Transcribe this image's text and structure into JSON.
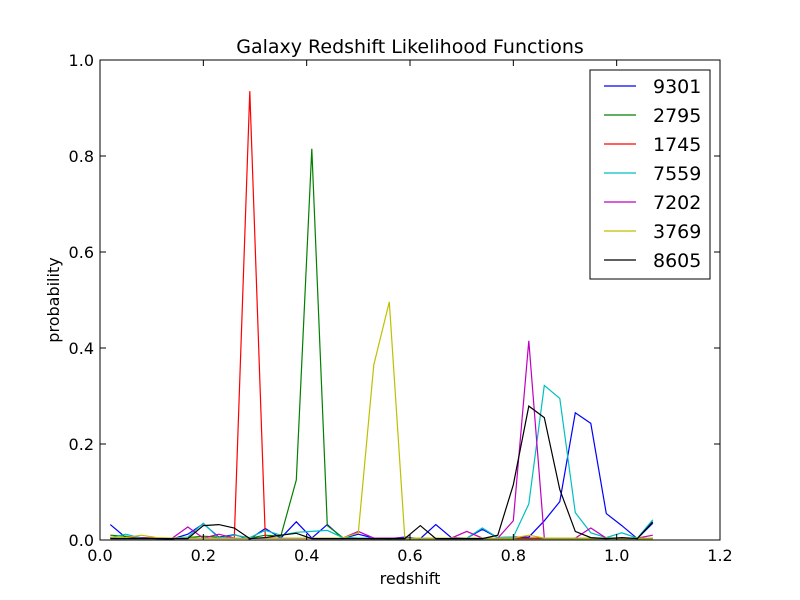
{
  "chart_data": {
    "type": "line",
    "title": "Galaxy Redshift Likelihood Functions",
    "xlabel": "redshift",
    "ylabel": "probability",
    "xlim": [
      0.0,
      1.2
    ],
    "ylim": [
      0.0,
      1.0
    ],
    "xticks": [
      "0.0",
      "0.2",
      "0.4",
      "0.6",
      "0.8",
      "1.0",
      "1.2"
    ],
    "yticks": [
      "0.0",
      "0.2",
      "0.4",
      "0.6",
      "0.8",
      "1.0"
    ],
    "grid": false,
    "legend": "top-right",
    "x": [
      0.02,
      0.05,
      0.08,
      0.11,
      0.14,
      0.17,
      0.2,
      0.23,
      0.26,
      0.29,
      0.32,
      0.35,
      0.38,
      0.41,
      0.44,
      0.47,
      0.5,
      0.53,
      0.56,
      0.59,
      0.62,
      0.65,
      0.68,
      0.71,
      0.74,
      0.77,
      0.8,
      0.83,
      0.86,
      0.89,
      0.92,
      0.95,
      0.98,
      1.01,
      1.04,
      1.07
    ],
    "series": [
      {
        "name": "9301",
        "color": "#0000ff",
        "values": [
          0.032,
          0.005,
          0.005,
          0.003,
          0.002,
          0.012,
          0.034,
          0.006,
          0.011,
          0.002,
          0.024,
          0.004,
          0.038,
          0.004,
          0.032,
          0.003,
          0.012,
          0.004,
          0.003,
          0.006,
          0.003,
          0.032,
          0.005,
          0.004,
          0.022,
          0.005,
          0.006,
          0.006,
          0.04,
          0.08,
          0.265,
          0.243,
          0.055,
          0.03,
          0.003,
          0.035
        ]
      },
      {
        "name": "2795",
        "color": "#008000",
        "values": [
          0.01,
          0.008,
          0.005,
          0.004,
          0.003,
          0.005,
          0.008,
          0.006,
          0.004,
          0.004,
          0.01,
          0.008,
          0.125,
          0.815,
          0.03,
          0.005,
          0.004,
          0.003,
          0.003,
          0.003,
          0.003,
          0.003,
          0.003,
          0.003,
          0.003,
          0.003,
          0.003,
          0.003,
          0.003,
          0.003,
          0.003,
          0.003,
          0.003,
          0.003,
          0.003,
          0.003
        ]
      },
      {
        "name": "1745",
        "color": "#ff0000",
        "values": [
          0.005,
          0.004,
          0.004,
          0.004,
          0.004,
          0.004,
          0.004,
          0.004,
          0.004,
          0.935,
          0.005,
          0.004,
          0.004,
          0.004,
          0.004,
          0.004,
          0.004,
          0.004,
          0.004,
          0.004,
          0.004,
          0.004,
          0.004,
          0.004,
          0.004,
          0.004,
          0.004,
          0.004,
          0.004,
          0.004,
          0.004,
          0.004,
          0.004,
          0.004,
          0.004,
          0.004
        ]
      },
      {
        "name": "7559",
        "color": "#00bfbf",
        "values": [
          0.005,
          0.012,
          0.004,
          0.004,
          0.004,
          0.006,
          0.035,
          0.004,
          0.01,
          0.005,
          0.02,
          0.01,
          0.016,
          0.018,
          0.02,
          0.005,
          0.004,
          0.004,
          0.004,
          0.004,
          0.004,
          0.004,
          0.004,
          0.004,
          0.025,
          0.005,
          0.006,
          0.075,
          0.322,
          0.295,
          0.057,
          0.015,
          0.005,
          0.015,
          0.004,
          0.042
        ]
      },
      {
        "name": "7202",
        "color": "#bf00bf",
        "values": [
          0.005,
          0.004,
          0.004,
          0.004,
          0.004,
          0.027,
          0.004,
          0.012,
          0.004,
          0.004,
          0.004,
          0.004,
          0.004,
          0.004,
          0.004,
          0.004,
          0.018,
          0.004,
          0.004,
          0.004,
          0.004,
          0.004,
          0.004,
          0.018,
          0.004,
          0.004,
          0.04,
          0.415,
          0.004,
          0.004,
          0.004,
          0.025,
          0.004,
          0.004,
          0.004,
          0.01
        ]
      },
      {
        "name": "3769",
        "color": "#bfbf00",
        "values": [
          0.006,
          0.005,
          0.01,
          0.005,
          0.004,
          0.004,
          0.004,
          0.004,
          0.004,
          0.004,
          0.004,
          0.004,
          0.004,
          0.004,
          0.004,
          0.004,
          0.015,
          0.365,
          0.496,
          0.004,
          0.004,
          0.004,
          0.004,
          0.004,
          0.004,
          0.004,
          0.004,
          0.01,
          0.004,
          0.004,
          0.004,
          0.004,
          0.004,
          0.004,
          0.004,
          0.004
        ]
      },
      {
        "name": "8605",
        "color": "#000000",
        "values": [
          0.003,
          0.003,
          0.003,
          0.003,
          0.003,
          0.003,
          0.03,
          0.032,
          0.025,
          0.003,
          0.005,
          0.01,
          0.014,
          0.003,
          0.003,
          0.003,
          0.003,
          0.003,
          0.003,
          0.003,
          0.03,
          0.003,
          0.003,
          0.003,
          0.003,
          0.01,
          0.115,
          0.279,
          0.255,
          0.105,
          0.018,
          0.005,
          0.003,
          0.005,
          0.003,
          0.038
        ]
      }
    ]
  }
}
